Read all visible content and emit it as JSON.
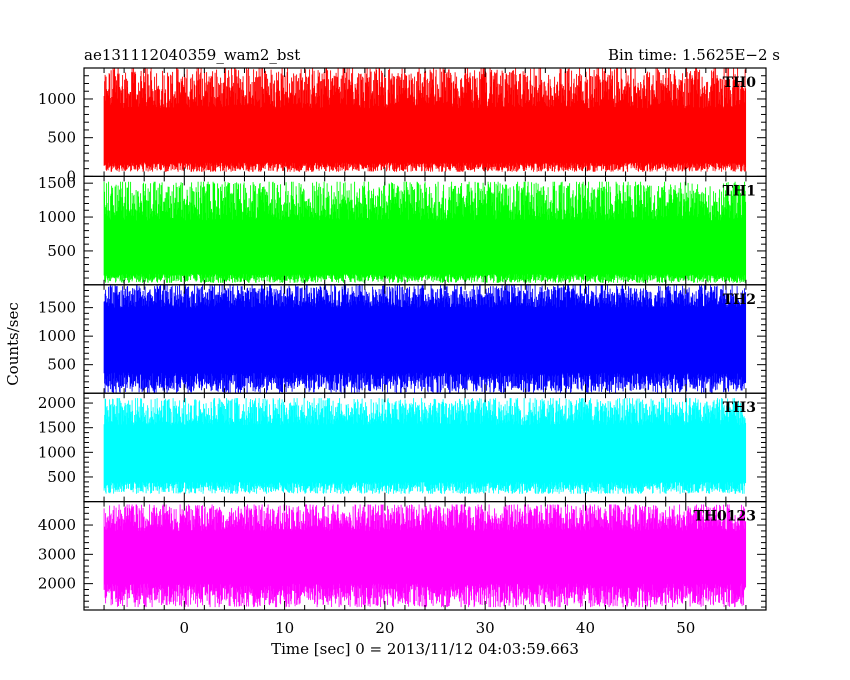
{
  "chart_data": {
    "type": "line",
    "title_left": "ae131112040359_wam2_bst",
    "title_right": "Bin time: 1.5625E−2 s",
    "xlabel": "Time [sec] 0 = 2013/11/12 04:03:59.663",
    "ylabel": "Counts/sec",
    "xlim": [
      -10,
      58
    ],
    "x_ticks": [
      0,
      10,
      20,
      30,
      40,
      50
    ],
    "x_tick_labels": [
      "0",
      "10",
      "20",
      "30",
      "40",
      "50"
    ],
    "series_x_range": [
      -8.0,
      56.0
    ],
    "panels": [
      {
        "name": "TH0",
        "color": "#ff0000",
        "ylim": [
          0,
          1400
        ],
        "y_ticks": [
          0,
          500,
          1000
        ],
        "y_tick_labels": [
          "0",
          "500",
          "1000"
        ],
        "mean": 510,
        "low_range": [
          60,
          180
        ],
        "high_range": [
          880,
          1400
        ]
      },
      {
        "name": "TH1",
        "color": "#00ff00",
        "ylim": [
          0,
          1600
        ],
        "y_ticks": [
          500,
          1000,
          1500
        ],
        "y_tick_labels": [
          "500",
          "1000",
          "1500"
        ],
        "mean": 560,
        "low_range": [
          30,
          160
        ],
        "high_range": [
          950,
          1520
        ]
      },
      {
        "name": "TH2",
        "color": "#0000ff",
        "ylim": [
          0,
          1900
        ],
        "y_ticks": [
          500,
          1000,
          1500
        ],
        "y_tick_labels": [
          "500",
          "1000",
          "1500"
        ],
        "mean": 830,
        "low_range": [
          10,
          360
        ],
        "high_range": [
          1500,
          1900
        ]
      },
      {
        "name": "TH3",
        "color": "#00ffff",
        "ylim": [
          0,
          2200
        ],
        "y_ticks": [
          500,
          1000,
          1500,
          2000
        ],
        "y_tick_labels": [
          "500",
          "1000",
          "1500",
          "2000"
        ],
        "mean": 1000,
        "low_range": [
          160,
          400
        ],
        "high_range": [
          1550,
          2100
        ]
      },
      {
        "name": "TH0123",
        "color": "#ff00ff",
        "ylim": [
          1100,
          4800
        ],
        "y_ticks": [
          2000,
          3000,
          4000
        ],
        "y_tick_labels": [
          "2000",
          "3000",
          "4000"
        ],
        "mean": 2950,
        "low_range": [
          1200,
          2000
        ],
        "high_range": [
          3800,
          4700
        ]
      }
    ]
  }
}
